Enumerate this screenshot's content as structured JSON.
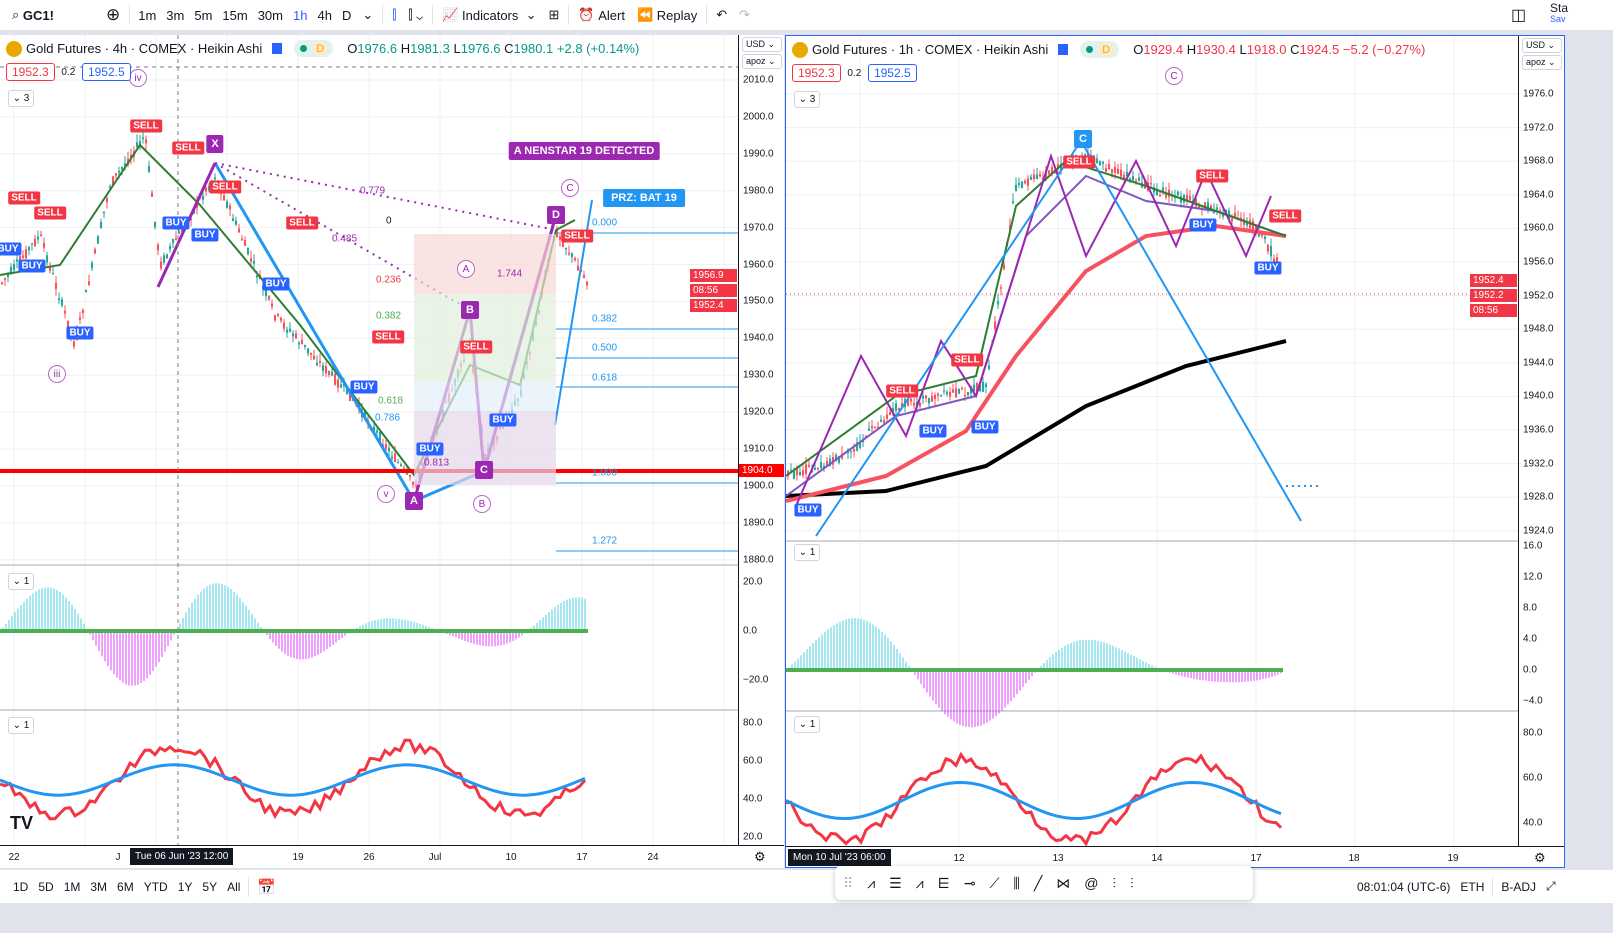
{
  "toolbar": {
    "symbol": "GC1!",
    "intervals": [
      "1m",
      "3m",
      "5m",
      "15m",
      "30m",
      "1h",
      "4h",
      "D"
    ],
    "active_interval": "1h",
    "indicators": "Indicators",
    "alert": "Alert",
    "replay": "Replay",
    "layout_title": "Sta",
    "layout_sub": "Sav"
  },
  "left": {
    "title": "Gold Futures · 4h · COMEX · Heikin Ashi",
    "badge": "D",
    "o_l": "O",
    "o": "1976.6",
    "h_l": "H",
    "h": "1981.3",
    "l_l": "L",
    "l": "1976.6",
    "c_l": "C",
    "c": "1980.1",
    "chg": "+2.8 (+0.14%)",
    "bid": "1952.3",
    "spread": "0.2",
    "ask": "1952.5",
    "currency": "USD",
    "scale": "apoz",
    "price_ticks": [
      "2010.0",
      "2000.0",
      "1990.0",
      "1980.0",
      "1970.0",
      "1960.0",
      "1950.0",
      "1940.0",
      "1930.0",
      "1920.0",
      "1910.0",
      "1900.0",
      "1890.0",
      "1880.0"
    ],
    "price_labels": [
      "1956.9",
      "08:56",
      "1952.4"
    ],
    "level_label": "1904.0",
    "osc1_ticks": [
      "20.0",
      "0.0",
      "−20.0"
    ],
    "osc2_ticks": [
      "80.0",
      "60.0",
      "40.0",
      "20.0"
    ],
    "pane_counts": [
      "3",
      "1",
      "1"
    ],
    "time_ticks": [
      "22",
      "J",
      "19",
      "26",
      "Jul",
      "10",
      "17",
      "24"
    ],
    "crosshair_time": "Tue 06 Jun '23   12:00",
    "signals": [
      [
        "SELL",
        146,
        126
      ],
      [
        "SELL",
        188,
        148
      ],
      [
        "SELL",
        225,
        187
      ],
      [
        "SELL",
        24,
        198
      ],
      [
        "SELL",
        50,
        196
      ],
      [
        "BUY",
        176,
        223
      ],
      [
        "BUY",
        205,
        235
      ],
      [
        "BUY",
        8,
        249
      ],
      [
        "BUY",
        32,
        266
      ],
      [
        "BUY",
        276,
        284
      ],
      [
        "SELL",
        302,
        223
      ],
      [
        "BUY",
        80,
        333
      ],
      [
        "SELL",
        388,
        337
      ],
      [
        "BUY",
        364,
        387
      ],
      [
        "SELL",
        476,
        347
      ],
      [
        "BUY",
        503,
        420
      ],
      [
        "BUY",
        430,
        449
      ],
      [
        "SELL",
        577,
        236
      ]
    ],
    "points": [
      [
        "X",
        215,
        144
      ],
      [
        "B",
        470,
        310
      ],
      [
        "A",
        414,
        501
      ],
      [
        "C",
        484,
        470
      ],
      [
        "D",
        556,
        215
      ]
    ],
    "waves": [
      [
        "iv",
        138,
        78
      ],
      [
        "iii",
        57,
        374
      ],
      [
        "v",
        386,
        494
      ],
      [
        "A",
        466,
        269
      ],
      [
        "B",
        482,
        504
      ],
      [
        "C",
        570,
        188
      ]
    ],
    "fibs_purple": [
      [
        "0.779",
        370,
        191,
        "#9c27b0"
      ],
      [
        "0",
        396,
        221,
        "#131722"
      ],
      [
        "0.485",
        342,
        239,
        "#9c27b0"
      ],
      [
        "0.236",
        386,
        280,
        "#f23645"
      ],
      [
        "1.744",
        507,
        274,
        "#9c27b0"
      ],
      [
        "0.382",
        386,
        316,
        "#4caf50"
      ],
      [
        "0.618",
        388,
        376,
        "#4caf50"
      ],
      [
        "0.786",
        385,
        418,
        "#2196f3"
      ],
      [
        "0.813",
        434,
        463,
        "#9c27b0"
      ]
    ],
    "fibs_blue": [
      [
        "0.000",
        227
      ],
      [
        "0.382",
        323
      ],
      [
        "0.500",
        352
      ],
      [
        "0.618",
        382
      ],
      [
        "1.000",
        477
      ],
      [
        "1.272",
        545
      ]
    ],
    "banner": "A NENSTAR 19 DETECTED",
    "prz": "PRZ: BAT 19"
  },
  "right": {
    "title": "Gold Futures · 1h · COMEX · Heikin Ashi",
    "badge": "D",
    "o_l": "O",
    "o": "1929.4",
    "h_l": "H",
    "h": "1930.4",
    "l_l": "L",
    "l": "1918.0",
    "c_l": "C",
    "c": "1924.5",
    "chg": "−5.2 (−0.27%)",
    "bid": "1952.3",
    "spread": "0.2",
    "ask": "1952.5",
    "currency": "USD",
    "scale": "apoz",
    "price_ticks": [
      "1976.0",
      "1972.0",
      "1968.0",
      "1964.0",
      "1960.0",
      "1956.0",
      "1952.0",
      "1948.0",
      "1944.0",
      "1940.0",
      "1936.0",
      "1932.0",
      "1928.0",
      "1924.0"
    ],
    "price_labels": [
      "1952.4",
      "1952.2",
      "08:56"
    ],
    "osc1_ticks": [
      "16.0",
      "12.0",
      "8.0",
      "4.0",
      "0.0",
      "−4.0"
    ],
    "osc2_ticks": [
      "80.0",
      "60.0",
      "40.0"
    ],
    "pane_counts": [
      "3",
      "1",
      "1"
    ],
    "time_ticks": [
      "12",
      "13",
      "14",
      "17",
      "18",
      "19"
    ],
    "crosshair_time": "Mon 10 Jul '23   06:00",
    "signals": [
      [
        "SELL",
        1078,
        161
      ],
      [
        "SELL",
        1211,
        175
      ],
      [
        "SELL",
        1284,
        215
      ],
      [
        "BUY",
        1202,
        224
      ],
      [
        "BUY",
        1267,
        267
      ],
      [
        "SELL",
        966,
        359
      ],
      [
        "SELL",
        901,
        390
      ],
      [
        "BUY",
        932,
        430
      ],
      [
        "BUY",
        984,
        426
      ],
      [
        "BUY",
        807,
        509
      ]
    ],
    "points": [
      [
        "C",
        1082,
        138
      ]
    ],
    "waves": [
      [
        "C",
        1173,
        75
      ]
    ]
  },
  "bottom": {
    "ranges": [
      "1D",
      "5D",
      "1M",
      "3M",
      "6M",
      "YTD",
      "1Y",
      "5Y",
      "All"
    ],
    "time": "08:01:04 (UTC-6)",
    "session": "ETH",
    "adj": "B-ADJ"
  },
  "colors": {
    "up": "#089981",
    "down": "#f23645",
    "accent": "#2962ff",
    "pattern": "#9c27b0"
  }
}
